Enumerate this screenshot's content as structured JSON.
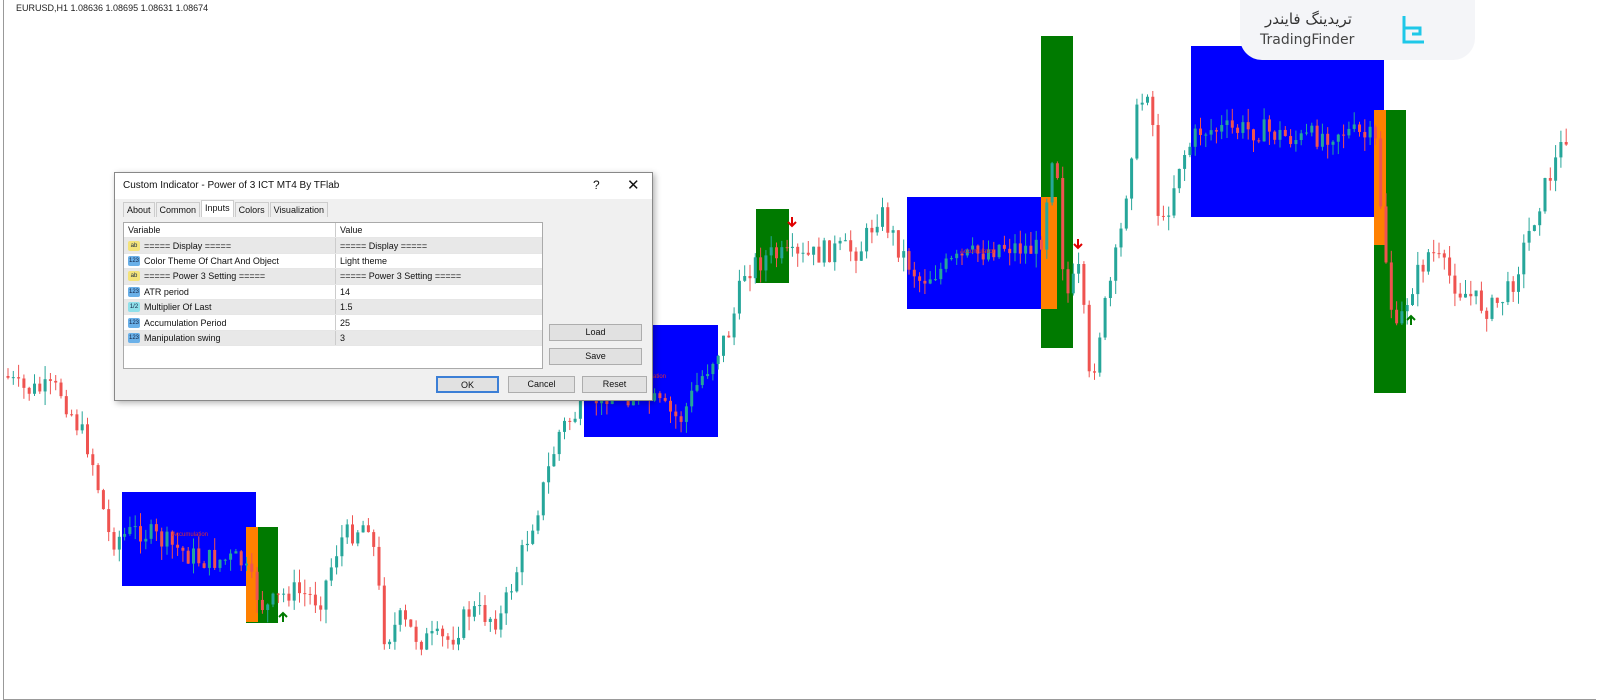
{
  "chart": {
    "symbol_line": "EURUSD,H1  1.08636 1.08695 1.08631 1.08674",
    "colors": {
      "bull": "#26a69a",
      "bear": "#ef5350",
      "accumulation": "#0000ff",
      "manipulation": "#ff8000",
      "distribution": "#007a00",
      "arrow_down": "#e00000",
      "arrow_up": "#007a00"
    },
    "zone_labels": [
      "Accumulation",
      "Accumulation",
      "Accumulation"
    ]
  },
  "logo": {
    "fa": "تریدینگ فایندر",
    "en": "TradingFinder"
  },
  "dialog": {
    "title": "Custom Indicator - Power of 3 ICT MT4 By TFlab",
    "help": "?",
    "close": "✕",
    "tabs": [
      "About",
      "Common",
      "Inputs",
      "Colors",
      "Visualization"
    ],
    "active_tab": "Inputs",
    "columns": [
      "Variable",
      "Value"
    ],
    "rows": [
      {
        "type": "ab",
        "variable": "===== Display =====",
        "value": "===== Display ====="
      },
      {
        "type": "123",
        "variable": "Color Theme Of Chart And Object",
        "value": "Light theme"
      },
      {
        "type": "ab",
        "variable": "===== Power 3 Setting =====",
        "value": "===== Power 3 Setting ====="
      },
      {
        "type": "123",
        "variable": "ATR period",
        "value": "14"
      },
      {
        "type": "1/2",
        "variable": "Multiplier Of Last",
        "value": "1.5"
      },
      {
        "type": "123",
        "variable": "Accumulation Period",
        "value": "25"
      },
      {
        "type": "123",
        "variable": "Manipulation swing",
        "value": "3"
      }
    ],
    "buttons": {
      "load": "Load",
      "save": "Save",
      "ok": "OK",
      "cancel": "Cancel",
      "reset": "Reset"
    }
  }
}
